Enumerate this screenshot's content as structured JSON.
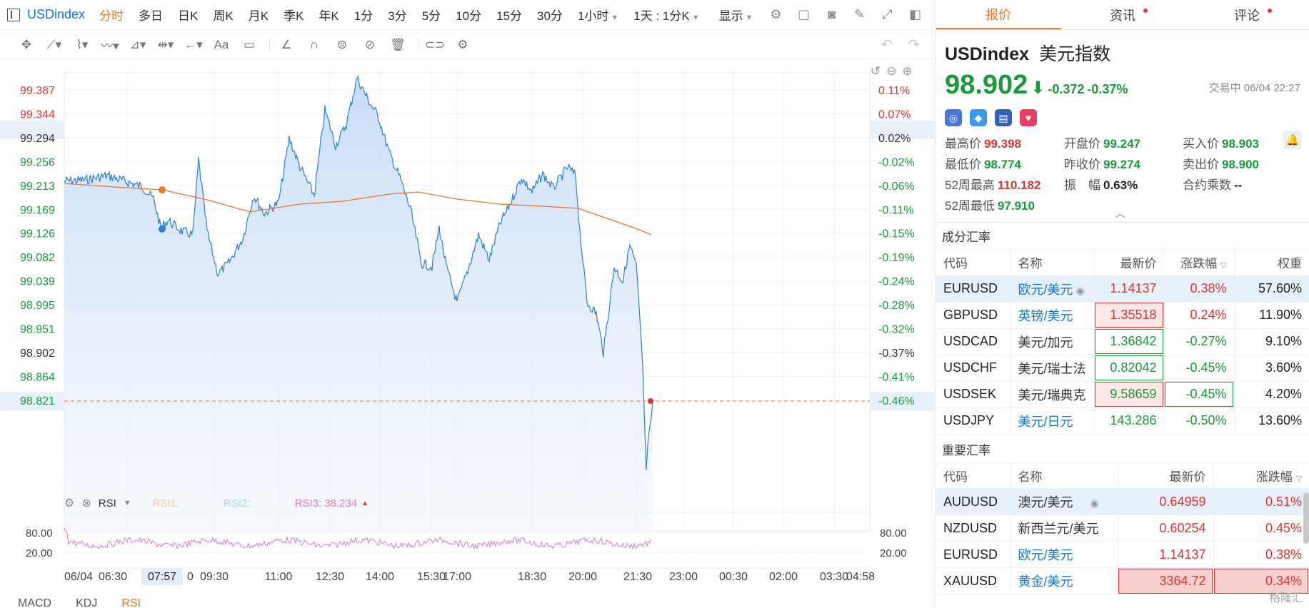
{
  "toolbar": {
    "symbol": "USDindex",
    "timeframes": [
      "分时",
      "多日",
      "日K",
      "周K",
      "月K",
      "季K",
      "年K",
      "1分",
      "3分",
      "5分",
      "10分",
      "15分",
      "30分"
    ],
    "active_timeframe": "分时",
    "dropdown_interval": "1小时",
    "dropdown_range": "1天 : 1分K",
    "display_label": "显示"
  },
  "chart": {
    "price_ticks": [
      "99.387",
      "99.344",
      "99.294",
      "99.256",
      "99.213",
      "99.169",
      "99.126",
      "99.082",
      "99.039",
      "98.995",
      "98.951",
      "98.902",
      "98.864",
      "98.821"
    ],
    "pct_ticks": [
      "0.11%",
      "0.07%",
      "0.02%",
      "-0.02%",
      "-0.06%",
      "-0.11%",
      "-0.15%",
      "-0.19%",
      "-0.24%",
      "-0.28%",
      "-0.32%",
      "-0.37%",
      "-0.41%",
      "-0.46%"
    ],
    "time_ticks": [
      "06/04",
      "06:30",
      "09:30",
      "11:00",
      "12:30",
      "14:00",
      "15:30",
      "17:00",
      "18:30",
      "20:00",
      "21:30",
      "23:00",
      "00:30",
      "02:00",
      "03:30",
      "04:58"
    ],
    "crosshair_time": "07:57",
    "crosshair_time_suffix": "0",
    "current_price_label": "98.902",
    "current_pct_label": "-0.37%",
    "highlight_price_label": "99.294",
    "highlight_pct_label": "0.02%",
    "rsi": {
      "label": "RSI",
      "rsi1": "RSI1:",
      "rsi2": "RSI2:",
      "rsi3": "RSI3:",
      "rsi3_value": "38.234",
      "level_high": "80.00",
      "level_low": "20.00"
    },
    "bottom_tabs": [
      "MACD",
      "KDJ",
      "RSI"
    ],
    "colors": {
      "line": "#2f7fd8",
      "fill": "#cfe2f8",
      "ma": "#e8762c",
      "rsi": "#d97bd0",
      "up": "#e03434",
      "down": "#1a9a3c"
    }
  },
  "panel": {
    "tabs": [
      "报价",
      "资讯",
      "评论"
    ],
    "active_tab": "报价",
    "name_en": "USDindex",
    "name_cn": "美元指数",
    "price": "98.902",
    "change": "-0.372",
    "change_pct": "-0.37%",
    "status": "交易中 06/04 22:27",
    "stats": [
      {
        "label": "最高价",
        "value": "99.398",
        "color": "red"
      },
      {
        "label": "开盘价",
        "value": "99.247",
        "color": "green"
      },
      {
        "label": "买入价",
        "value": "98.903",
        "color": "green"
      },
      {
        "label": "最低价",
        "value": "98.774",
        "color": "green"
      },
      {
        "label": "昨收价",
        "value": "99.274",
        "color": "green"
      },
      {
        "label": "卖出价",
        "value": "98.900",
        "color": "green"
      },
      {
        "label": "52周最高",
        "value": "110.182",
        "color": "red"
      },
      {
        "label": "振　幅",
        "value": "0.63%",
        "color": "dark"
      },
      {
        "label": "合约乘数",
        "value": "--",
        "color": "dark"
      },
      {
        "label": "52周最低",
        "value": "97.910",
        "color": "green"
      }
    ]
  },
  "components": {
    "title": "成分汇率",
    "headers": [
      "代码",
      "名称",
      "最新价",
      "涨跌幅",
      "权重"
    ],
    "rows": [
      {
        "code": "EURUSD",
        "name": "欧元/美元",
        "price": "1.14137",
        "pct": "0.38%",
        "weight": "57.60%",
        "up": true
      },
      {
        "code": "GBPUSD",
        "name": "英镑/美元",
        "price": "1.35518",
        "pct": "0.24%",
        "weight": "11.90%",
        "up": true
      },
      {
        "code": "USDCAD",
        "name": "美元/加元",
        "price": "1.36842",
        "pct": "-0.27%",
        "weight": "9.10%",
        "up": false
      },
      {
        "code": "USDCHF",
        "name": "美元/瑞士法",
        "price": "0.82042",
        "pct": "-0.45%",
        "weight": "3.60%",
        "up": false
      },
      {
        "code": "USDSEK",
        "name": "美元/瑞典克",
        "price": "9.58659",
        "pct": "-0.45%",
        "weight": "4.20%",
        "up": false
      },
      {
        "code": "USDJPY",
        "name": "美元/日元",
        "price": "143.286",
        "pct": "-0.50%",
        "weight": "13.60%",
        "up": false
      }
    ]
  },
  "important": {
    "title": "重要汇率",
    "headers": [
      "代码",
      "名称",
      "最新价",
      "涨跌幅"
    ],
    "rows": [
      {
        "code": "AUDUSD",
        "name": "澳元/美元",
        "price": "0.64959",
        "pct": "0.51%"
      },
      {
        "code": "NZDUSD",
        "name": "新西兰元/美元",
        "price": "0.60254",
        "pct": "0.45%"
      },
      {
        "code": "EURUSD",
        "name": "欧元/美元",
        "price": "1.14137",
        "pct": "0.38%"
      },
      {
        "code": "XAUUSD",
        "name": "黄金/美元",
        "price": "3364.72",
        "pct": "0.34%"
      }
    ]
  },
  "watermark": "格隆汇"
}
